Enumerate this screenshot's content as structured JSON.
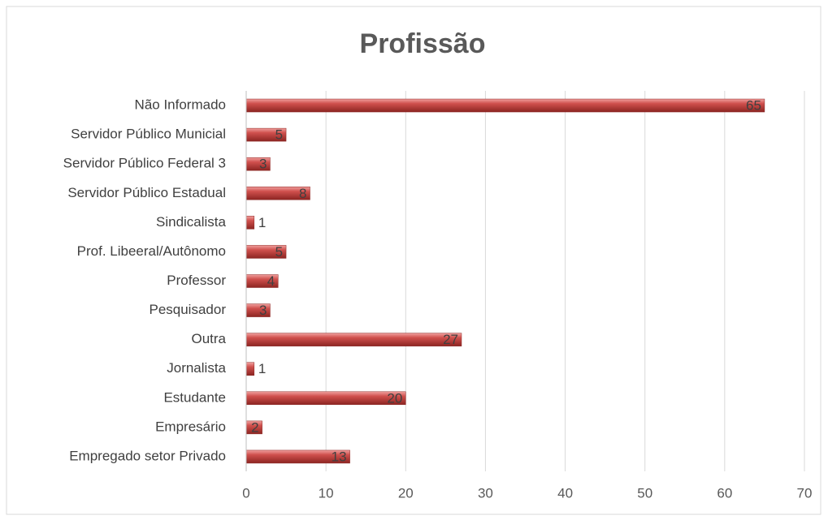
{
  "chart_data": {
    "type": "bar",
    "orientation": "horizontal",
    "title": "Profissão",
    "categories": [
      "Não Informado",
      "Servidor Público Municial",
      "Servidor Público Federal 3",
      "Servidor Público Estadual",
      "Sindicalista",
      "Prof. Libeeral/Autônomo",
      "Professor",
      "Pesquisador",
      "Outra",
      "Jornalista",
      "Estudante",
      "Empresário",
      "Empregado setor Privado"
    ],
    "values": [
      65,
      5,
      3,
      8,
      1,
      5,
      4,
      3,
      27,
      1,
      20,
      2,
      13
    ],
    "color": "#c0504d",
    "xlim": [
      0,
      70
    ],
    "xticks": [
      0,
      10,
      20,
      30,
      40,
      50,
      60,
      70
    ],
    "grid": true
  }
}
